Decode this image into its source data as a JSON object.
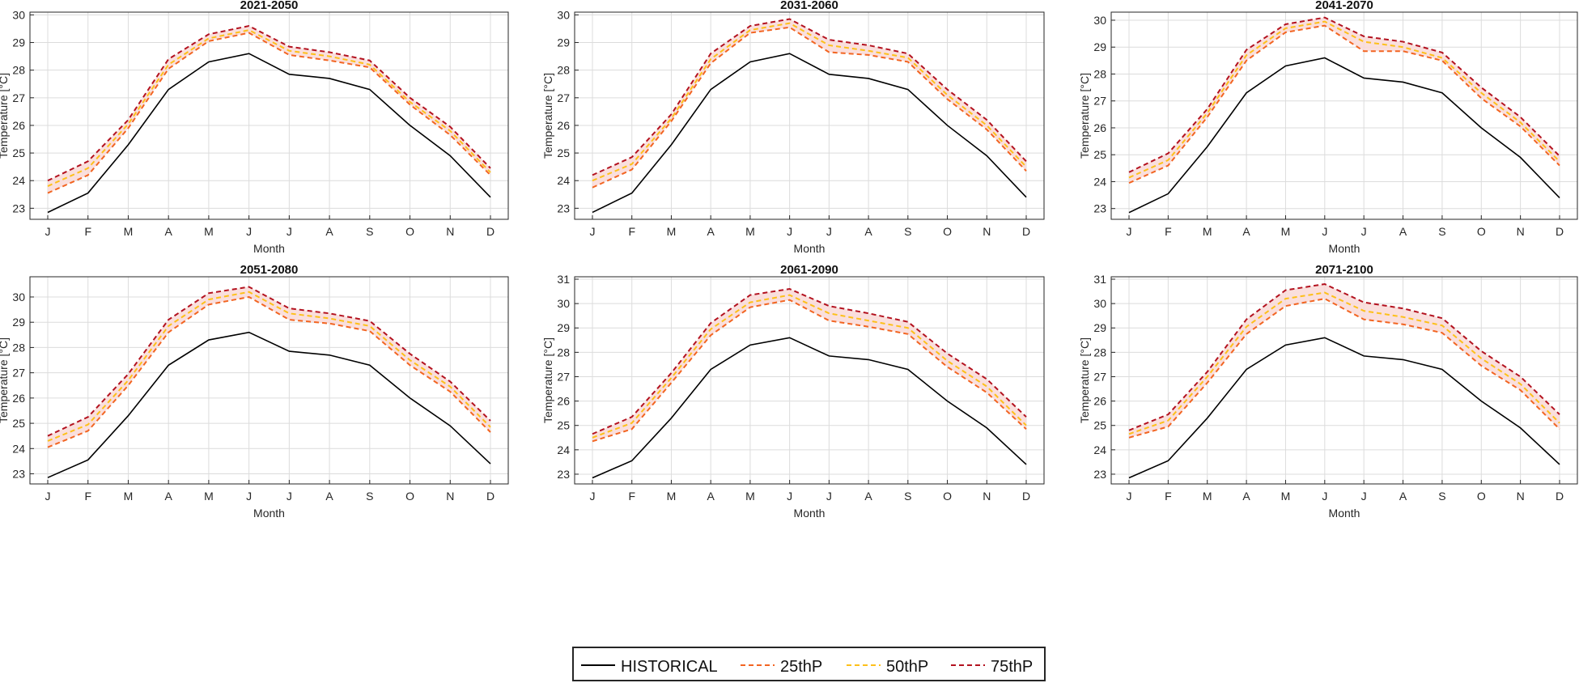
{
  "chart_data": [
    {
      "type": "line",
      "title": "2021-2050",
      "xlabel": "Month",
      "ylabel": "Temperature [°C]",
      "categories": [
        "J",
        "F",
        "M",
        "A",
        "M",
        "J",
        "J",
        "A",
        "S",
        "O",
        "N",
        "D"
      ],
      "ylim": [
        22.6,
        30.1
      ],
      "yticks": [
        23,
        24,
        25,
        26,
        27,
        28,
        29,
        30
      ],
      "grid": true,
      "series": [
        {
          "name": "HISTORICAL",
          "values": [
            22.85,
            23.55,
            25.3,
            27.3,
            28.3,
            28.6,
            27.85,
            27.7,
            27.3,
            26.0,
            24.9,
            23.4
          ]
        },
        {
          "name": "25thP",
          "values": [
            23.55,
            24.2,
            25.9,
            28.05,
            29.05,
            29.35,
            28.55,
            28.35,
            28.1,
            26.75,
            25.65,
            24.2
          ]
        },
        {
          "name": "50thP",
          "values": [
            23.8,
            24.45,
            26.05,
            28.2,
            29.15,
            29.45,
            28.7,
            28.5,
            28.2,
            26.85,
            25.8,
            24.3
          ]
        },
        {
          "name": "75thP",
          "values": [
            24.0,
            24.7,
            26.2,
            28.4,
            29.3,
            29.6,
            28.85,
            28.65,
            28.35,
            27.0,
            25.95,
            24.45
          ]
        }
      ]
    },
    {
      "type": "line",
      "title": "2031-2060",
      "xlabel": "Month",
      "ylabel": "Temperature [°C]",
      "categories": [
        "J",
        "F",
        "M",
        "A",
        "M",
        "J",
        "J",
        "A",
        "S",
        "O",
        "N",
        "D"
      ],
      "ylim": [
        22.6,
        30.1
      ],
      "yticks": [
        23,
        24,
        25,
        26,
        27,
        28,
        29,
        30
      ],
      "grid": true,
      "series": [
        {
          "name": "HISTORICAL",
          "values": [
            22.85,
            23.55,
            25.3,
            27.3,
            28.3,
            28.6,
            27.85,
            27.7,
            27.3,
            26.0,
            24.9,
            23.4
          ]
        },
        {
          "name": "25thP",
          "values": [
            23.75,
            24.4,
            26.15,
            28.25,
            29.35,
            29.55,
            28.65,
            28.55,
            28.3,
            26.95,
            25.85,
            24.35
          ]
        },
        {
          "name": "50thP",
          "values": [
            24.0,
            24.6,
            26.25,
            28.4,
            29.45,
            29.7,
            28.9,
            28.7,
            28.45,
            27.1,
            26.0,
            24.5
          ]
        },
        {
          "name": "75thP",
          "values": [
            24.2,
            24.85,
            26.4,
            28.6,
            29.6,
            29.85,
            29.1,
            28.9,
            28.6,
            27.3,
            26.2,
            24.7
          ]
        }
      ]
    },
    {
      "type": "line",
      "title": "2041-2070",
      "xlabel": "Month",
      "ylabel": "Temperature [°C]",
      "categories": [
        "J",
        "F",
        "M",
        "A",
        "M",
        "J",
        "J",
        "A",
        "S",
        "O",
        "N",
        "D"
      ],
      "ylim": [
        22.6,
        30.3
      ],
      "yticks": [
        23,
        24,
        25,
        26,
        27,
        28,
        29,
        30
      ],
      "grid": true,
      "series": [
        {
          "name": "HISTORICAL",
          "values": [
            22.85,
            23.55,
            25.3,
            27.3,
            28.3,
            28.6,
            27.85,
            27.7,
            27.3,
            26.0,
            24.9,
            23.4
          ]
        },
        {
          "name": "25thP",
          "values": [
            23.95,
            24.6,
            26.4,
            28.5,
            29.55,
            29.8,
            28.85,
            28.85,
            28.5,
            27.1,
            26.05,
            24.6
          ]
        },
        {
          "name": "50thP",
          "values": [
            24.15,
            24.8,
            26.55,
            28.7,
            29.7,
            29.95,
            29.2,
            29.0,
            28.6,
            27.3,
            26.2,
            24.75
          ]
        },
        {
          "name": "75thP",
          "values": [
            24.35,
            25.05,
            26.7,
            28.9,
            29.85,
            30.1,
            29.4,
            29.2,
            28.8,
            27.5,
            26.4,
            24.95
          ]
        }
      ]
    },
    {
      "type": "line",
      "title": "2051-2080",
      "xlabel": "Month",
      "ylabel": "Temperature [°C]",
      "categories": [
        "J",
        "F",
        "M",
        "A",
        "M",
        "J",
        "J",
        "A",
        "S",
        "O",
        "N",
        "D"
      ],
      "ylim": [
        22.6,
        30.8
      ],
      "yticks": [
        23,
        24,
        25,
        26,
        27,
        28,
        29,
        30
      ],
      "grid": true,
      "series": [
        {
          "name": "HISTORICAL",
          "values": [
            22.85,
            23.55,
            25.3,
            27.3,
            28.3,
            28.6,
            27.85,
            27.7,
            27.3,
            26.0,
            24.9,
            23.4
          ]
        },
        {
          "name": "25thP",
          "values": [
            24.05,
            24.7,
            26.5,
            28.6,
            29.7,
            30.0,
            29.1,
            28.95,
            28.65,
            27.3,
            26.25,
            24.65
          ]
        },
        {
          "name": "50thP",
          "values": [
            24.3,
            24.95,
            26.7,
            28.85,
            29.9,
            30.2,
            29.35,
            29.15,
            28.85,
            27.5,
            26.45,
            24.85
          ]
        },
        {
          "name": "75thP",
          "values": [
            24.5,
            25.25,
            26.95,
            29.1,
            30.15,
            30.4,
            29.55,
            29.35,
            29.05,
            27.75,
            26.65,
            25.1
          ]
        }
      ]
    },
    {
      "type": "line",
      "title": "2061-2090",
      "xlabel": "Month",
      "ylabel": "Temperature [°C]",
      "categories": [
        "J",
        "F",
        "M",
        "A",
        "M",
        "J",
        "J",
        "A",
        "S",
        "O",
        "N",
        "D"
      ],
      "ylim": [
        22.6,
        31.1
      ],
      "yticks": [
        23,
        24,
        25,
        26,
        27,
        28,
        29,
        30,
        31
      ],
      "grid": true,
      "series": [
        {
          "name": "HISTORICAL",
          "values": [
            22.85,
            23.55,
            25.3,
            27.3,
            28.3,
            28.6,
            27.85,
            27.7,
            27.3,
            26.0,
            24.9,
            23.4
          ]
        },
        {
          "name": "25thP",
          "values": [
            24.35,
            24.85,
            26.75,
            28.7,
            29.85,
            30.15,
            29.3,
            29.05,
            28.75,
            27.4,
            26.35,
            24.85
          ]
        },
        {
          "name": "50thP",
          "values": [
            24.5,
            25.1,
            26.95,
            28.95,
            30.05,
            30.35,
            29.6,
            29.3,
            29.0,
            27.65,
            26.6,
            25.0
          ]
        },
        {
          "name": "75thP",
          "values": [
            24.65,
            25.35,
            27.15,
            29.2,
            30.35,
            30.6,
            29.9,
            29.6,
            29.25,
            27.95,
            26.9,
            25.35
          ]
        }
      ]
    },
    {
      "type": "line",
      "title": "2071-2100",
      "xlabel": "Month",
      "ylabel": "Temperature [°C]",
      "categories": [
        "J",
        "F",
        "M",
        "A",
        "M",
        "J",
        "J",
        "A",
        "S",
        "O",
        "N",
        "D"
      ],
      "ylim": [
        22.6,
        31.1
      ],
      "yticks": [
        23,
        24,
        25,
        26,
        27,
        28,
        29,
        30,
        31
      ],
      "grid": true,
      "series": [
        {
          "name": "HISTORICAL",
          "values": [
            22.85,
            23.55,
            25.3,
            27.3,
            28.3,
            28.6,
            27.85,
            27.7,
            27.3,
            26.0,
            24.9,
            23.4
          ]
        },
        {
          "name": "25thP",
          "values": [
            24.5,
            24.95,
            26.75,
            28.75,
            29.9,
            30.2,
            29.35,
            29.15,
            28.8,
            27.45,
            26.45,
            24.85
          ]
        },
        {
          "name": "50thP",
          "values": [
            24.65,
            25.2,
            27.0,
            29.05,
            30.2,
            30.45,
            29.7,
            29.45,
            29.1,
            27.75,
            26.7,
            25.1
          ]
        },
        {
          "name": "75thP",
          "values": [
            24.8,
            25.45,
            27.2,
            29.35,
            30.55,
            30.8,
            30.05,
            29.8,
            29.4,
            28.05,
            27.0,
            25.45
          ]
        }
      ]
    }
  ],
  "legend": {
    "position": "bottom-center",
    "entries": [
      {
        "label": "HISTORICAL",
        "color": "#000000",
        "style": "solid"
      },
      {
        "label": "25thP",
        "color": "#f26522",
        "style": "dashed"
      },
      {
        "label": "50thP",
        "color": "#fdc01a",
        "style": "dashed"
      },
      {
        "label": "75thP",
        "color": "#b3121f",
        "style": "dashed"
      }
    ]
  },
  "colors": {
    "HISTORICAL": "#000000",
    "25thP": "#f26522",
    "50thP": "#fdc01a",
    "75thP": "#b3121f",
    "band": "#f9d9d7",
    "grid": "#dcdcdc",
    "axis": "#262626"
  }
}
